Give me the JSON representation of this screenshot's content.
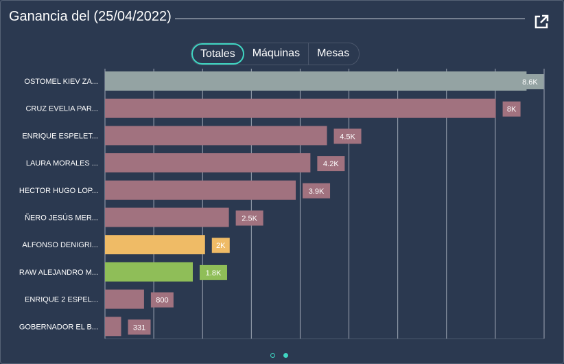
{
  "title": "Ganancia del (25/04/2022)",
  "icons": {
    "popout": "external-link-icon"
  },
  "tabs": [
    {
      "label": "Totales",
      "active": true
    },
    {
      "label": "Máquinas",
      "active": false
    },
    {
      "label": "Mesas",
      "active": false
    }
  ],
  "pager": {
    "pages": 2,
    "current": 2
  },
  "colors": {
    "highlight": "#94a3a3",
    "default": "#a1727f",
    "orange": "#efbb66",
    "green": "#8fbe58",
    "grid": "#c8ced8"
  },
  "chart_data": {
    "type": "bar",
    "orientation": "horizontal",
    "title": "",
    "xlabel": "",
    "ylabel": "",
    "xlim": [
      0,
      9000
    ],
    "grid": true,
    "categories": [
      "OSTOMEL KIEV ZA...",
      "CRUZ EVELIA PAR...",
      "ENRIQUE ESPELET...",
      "LAURA  MORALES ...",
      "HECTOR HUGO LOP...",
      "ÑERO JESÚS  MER...",
      "ALFONSO DENIGRI...",
      "RAW ALEJANDRO M...",
      "ENRIQUE 2 ESPEL...",
      "GOBERNADOR EL B..."
    ],
    "values": [
      8640,
      8010,
      4550,
      4210,
      3910,
      2540,
      2050,
      1800,
      800,
      331
    ],
    "value_labels": [
      "8.6K",
      "8K",
      "4.5K",
      "4.2K",
      "3.9K",
      "2.5K",
      "2K",
      "1.8K",
      "800",
      "331"
    ],
    "bar_colors": [
      "highlight",
      "default",
      "default",
      "default",
      "default",
      "default",
      "orange",
      "green",
      "default",
      "default"
    ]
  }
}
